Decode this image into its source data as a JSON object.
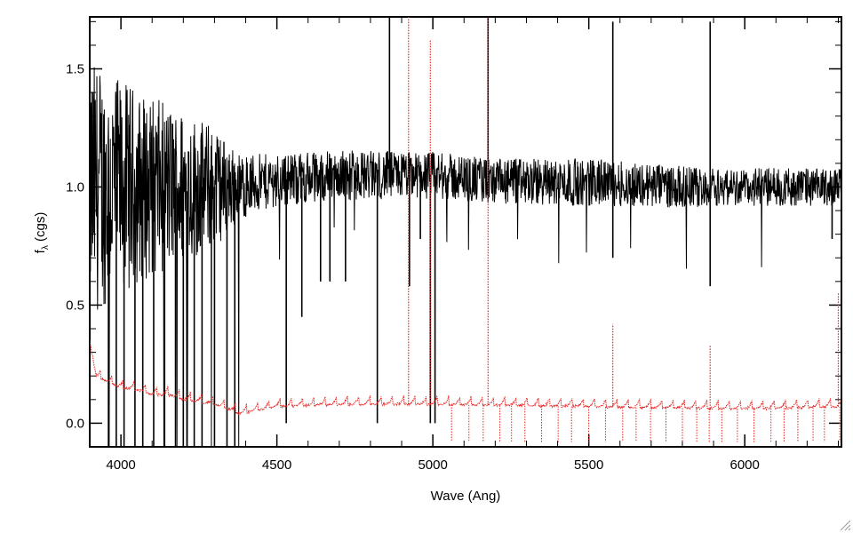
{
  "chart_data": {
    "type": "line",
    "title": "",
    "xlabel": "Wave (Ang)",
    "ylabel_main": "f",
    "ylabel_sub": "λ",
    "ylabel_rest": " (cgs)",
    "xlim": [
      3900,
      6310
    ],
    "ylim": [
      -0.1,
      1.72
    ],
    "x_ticks": [
      4000,
      4500,
      5000,
      5500,
      6000
    ],
    "x_tick_labels": [
      "4000",
      "4500",
      "5000",
      "5500",
      "6000"
    ],
    "y_ticks": [
      0.0,
      0.5,
      1.0,
      1.5
    ],
    "y_tick_labels": [
      "0.0",
      "0.5",
      "1.0",
      "1.5"
    ],
    "grid": false,
    "legend": "none",
    "colors": {
      "flux": "#000000",
      "error": "#e8231f",
      "frame": "#000000"
    },
    "series": [
      {
        "style": "solid",
        "color": "#000000",
        "points": [
          [
            3900,
            1.0
          ],
          [
            3950,
            1.0
          ],
          [
            4000,
            1.0
          ],
          [
            4100,
            1.0
          ],
          [
            4200,
            1.0
          ],
          [
            4300,
            1.0
          ],
          [
            4380,
            1.0
          ],
          [
            4500,
            1.03
          ],
          [
            4700,
            1.05
          ],
          [
            4900,
            1.05
          ],
          [
            5000,
            1.05
          ],
          [
            5200,
            1.02
          ],
          [
            5500,
            1.02
          ],
          [
            5800,
            1.0
          ],
          [
            6000,
            1.0
          ],
          [
            6310,
            1.0
          ]
        ],
        "noise": [
          [
            3900,
            0.55
          ],
          [
            4000,
            0.45
          ],
          [
            4100,
            0.38
          ],
          [
            4200,
            0.33
          ],
          [
            4300,
            0.26
          ],
          [
            4380,
            0.14
          ],
          [
            4500,
            0.11
          ],
          [
            5000,
            0.1
          ],
          [
            5500,
            0.1
          ],
          [
            6000,
            0.08
          ],
          [
            6310,
            0.08
          ]
        ],
        "spikes": [
          [
            3960,
            -0.1
          ],
          [
            3985,
            -0.1
          ],
          [
            4010,
            -0.1
          ],
          [
            4045,
            -0.1
          ],
          [
            4070,
            -0.1
          ],
          [
            4105,
            -0.1
          ],
          [
            4140,
            -0.1
          ],
          [
            4175,
            -0.1
          ],
          [
            4200,
            -0.1
          ],
          [
            4235,
            -0.1
          ],
          [
            4260,
            -0.1
          ],
          [
            4300,
            -0.1
          ],
          [
            4340,
            -0.1
          ],
          [
            4365,
            -0.1
          ],
          [
            4530,
            0.0
          ],
          [
            4580,
            0.45
          ],
          [
            4640,
            0.6
          ],
          [
            4670,
            0.6
          ],
          [
            4720,
            0.6
          ],
          [
            4822,
            0.0
          ],
          [
            4861,
            1.72
          ],
          [
            4925,
            0.58
          ],
          [
            4960,
            0.78
          ],
          [
            4992,
            0.0
          ],
          [
            5007,
            0.0
          ],
          [
            5177,
            0.95
          ],
          [
            5177,
            1.72
          ],
          [
            5577,
            1.7
          ],
          [
            5577,
            0.7
          ],
          [
            5889,
            1.7
          ],
          [
            5889,
            0.58
          ],
          [
            6280,
            0.78
          ]
        ]
      },
      {
        "style": "dotted",
        "color": "#e8231f",
        "points": [
          [
            3900,
            0.35
          ],
          [
            3920,
            0.2
          ],
          [
            3950,
            0.18
          ],
          [
            4000,
            0.15
          ],
          [
            4050,
            0.14
          ],
          [
            4100,
            0.12
          ],
          [
            4150,
            0.12
          ],
          [
            4200,
            0.1
          ],
          [
            4250,
            0.09
          ],
          [
            4300,
            0.08
          ],
          [
            4380,
            0.04
          ],
          [
            4420,
            0.05
          ],
          [
            4500,
            0.07
          ],
          [
            4700,
            0.08
          ],
          [
            5000,
            0.08
          ],
          [
            5500,
            0.07
          ],
          [
            6000,
            0.06
          ],
          [
            6310,
            0.07
          ]
        ],
        "period": 36,
        "spike_height": 0.04,
        "spikes": [
          [
            4922,
            1.72
          ],
          [
            4992,
            1.62
          ],
          [
            5177,
            1.72
          ],
          [
            5577,
            0.42
          ],
          [
            5889,
            0.33
          ],
          [
            6300,
            0.55
          ]
        ]
      }
    ]
  }
}
